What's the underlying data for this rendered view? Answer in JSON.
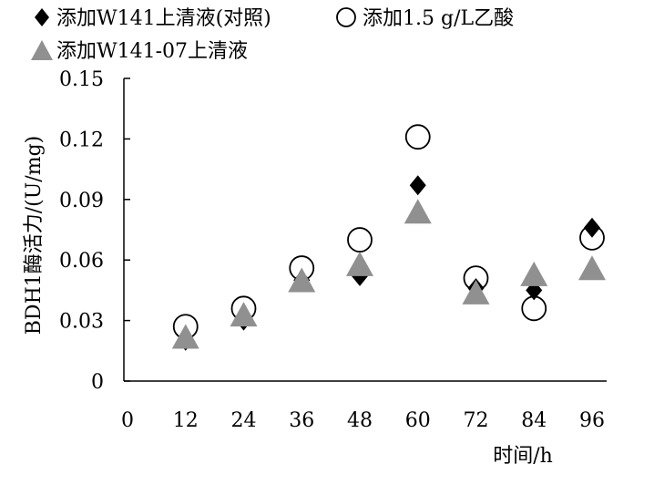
{
  "chart_data": {
    "type": "scatter",
    "xlabel": "时间/h",
    "ylabel": "BDH1酶活力/(U/mg)",
    "x": [
      12,
      24,
      36,
      48,
      60,
      72,
      84,
      96
    ],
    "xlim": [
      0,
      96
    ],
    "ylim": [
      0,
      0.15
    ],
    "x_ticks": [
      "0",
      "12",
      "24",
      "36",
      "48",
      "60",
      "72",
      "84",
      "96"
    ],
    "y_ticks": [
      "0",
      "0.03",
      "0.06",
      "0.09",
      "0.12",
      "0.15"
    ],
    "grid": false,
    "legend_position": "top",
    "series": [
      {
        "name": "添加W141上清液(对照)",
        "marker": "diamond",
        "color": "#000000",
        "values": [
          0.02,
          0.03,
          0.05,
          0.052,
          0.097,
          0.046,
          0.045,
          0.076
        ]
      },
      {
        "name": "添加1.5 g/L乙酸",
        "marker": "circle-open",
        "color": "#000000",
        "values": [
          0.027,
          0.036,
          0.056,
          0.07,
          0.121,
          0.051,
          0.036,
          0.071
        ]
      },
      {
        "name": "添加W141-07上清液",
        "marker": "triangle",
        "color": "#909090",
        "values": [
          0.021,
          0.032,
          0.049,
          0.057,
          0.083,
          0.043,
          0.052,
          0.055
        ]
      }
    ]
  }
}
